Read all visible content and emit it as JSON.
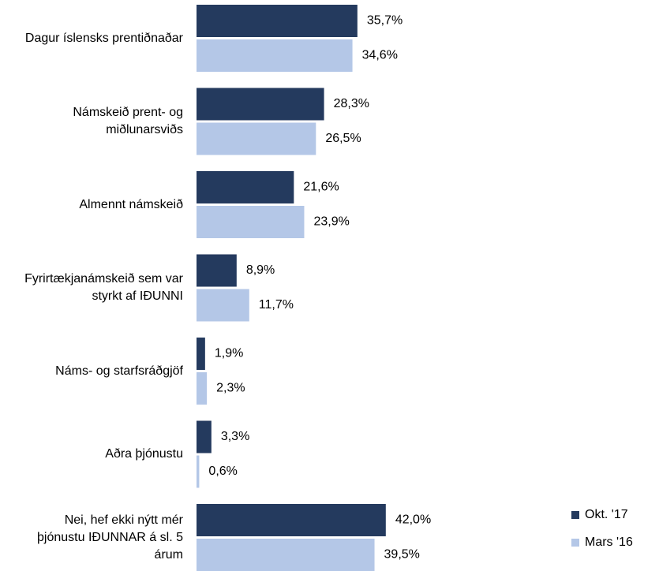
{
  "chart_data": {
    "type": "bar",
    "orientation": "horizontal",
    "categories": [
      "Dagur íslensks prentiðnaðar",
      "Námskeið prent- og miðlunarsviðs",
      "Almennt námskeið",
      "Fyrirtækjanámskeið sem var styrkt af IÐUNNI",
      "Náms- og starfsráðgjöf",
      "Aðra þjónustu",
      "Nei, hef ekki nýtt mér þjónustu IÐUNNAR á sl. 5 árum"
    ],
    "series": [
      {
        "name": "Okt. '17",
        "color": "#243a5e",
        "values": [
          35.7,
          28.3,
          21.6,
          8.9,
          1.9,
          3.3,
          42.0
        ],
        "value_labels": [
          "35,7%",
          "28,3%",
          "21,6%",
          "8,9%",
          "1,9%",
          "3,3%",
          "42,0%"
        ]
      },
      {
        "name": "Mars '16",
        "color": "#b4c7e7",
        "values": [
          34.6,
          26.5,
          23.9,
          11.7,
          2.3,
          0.6,
          39.5
        ],
        "value_labels": [
          "34,6%",
          "26,5%",
          "23,9%",
          "11,7%",
          "2,3%",
          "0,6%",
          "39,5%"
        ]
      }
    ],
    "legend": "right"
  }
}
